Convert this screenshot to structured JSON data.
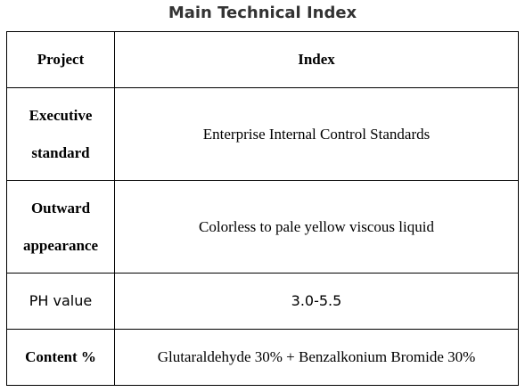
{
  "title": "Main Technical Index",
  "table": {
    "header": [
      "Project",
      "Index"
    ],
    "rows": [
      [
        "Executive standard",
        "Enterprise Internal Control Standards"
      ],
      [
        "Outward appearance",
        "Colorless to pale yellow viscous liquid"
      ],
      [
        "PH value",
        "3.0-5.5"
      ],
      [
        "Content %",
        "Glutaraldehyde 30% + Benzalkonium Bromide 30%"
      ]
    ]
  }
}
